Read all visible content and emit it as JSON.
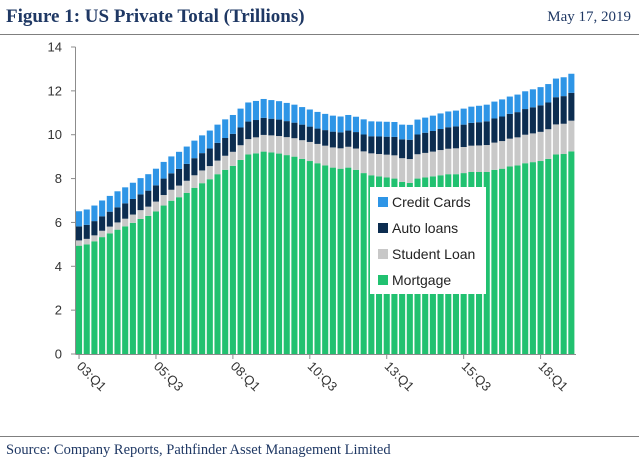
{
  "header": {
    "title": "Figure 1: US Private Total (Trillions)",
    "date": "May 17, 2019"
  },
  "footer": {
    "source": "Source: Company Reports, Pathfinder Asset Management Limited"
  },
  "chart_data": {
    "type": "bar",
    "stacked": true,
    "title": "",
    "xlabel": "",
    "ylabel": "",
    "ylim": [
      0,
      14
    ],
    "yticks": [
      0,
      2,
      4,
      6,
      8,
      10,
      12,
      14
    ],
    "grid": false,
    "legend_position": "center-right",
    "categories": [
      "03:Q1",
      "03:Q2",
      "03:Q3",
      "03:Q4",
      "04:Q1",
      "04:Q2",
      "04:Q3",
      "04:Q4",
      "05:Q1",
      "05:Q2",
      "05:Q3",
      "05:Q4",
      "06:Q1",
      "06:Q2",
      "06:Q3",
      "06:Q4",
      "07:Q1",
      "07:Q2",
      "07:Q3",
      "07:Q4",
      "08:Q1",
      "08:Q2",
      "08:Q3",
      "08:Q4",
      "09:Q1",
      "09:Q2",
      "09:Q3",
      "09:Q4",
      "10:Q1",
      "10:Q2",
      "10:Q3",
      "10:Q4",
      "11:Q1",
      "11:Q2",
      "11:Q3",
      "11:Q4",
      "12:Q1",
      "12:Q2",
      "12:Q3",
      "12:Q4",
      "13:Q1",
      "13:Q2",
      "13:Q3",
      "13:Q4",
      "14:Q1",
      "14:Q2",
      "14:Q3",
      "14:Q4",
      "15:Q1",
      "15:Q2",
      "15:Q3",
      "15:Q4",
      "16:Q1",
      "16:Q2",
      "16:Q3",
      "16:Q4",
      "17:Q1",
      "17:Q2",
      "17:Q3",
      "17:Q4",
      "18:Q1",
      "18:Q2",
      "18:Q3",
      "18:Q4",
      "19:Q1"
    ],
    "x_tick_labels": [
      "03:Q1",
      "05:Q3",
      "08:Q1",
      "10:Q3",
      "13:Q1",
      "15:Q3",
      "18:Q1"
    ],
    "series": [
      {
        "name": "Mortgage",
        "color": "#21c170",
        "values": [
          4.94,
          5.0,
          5.14,
          5.33,
          5.5,
          5.67,
          5.82,
          5.98,
          6.16,
          6.3,
          6.5,
          6.77,
          6.99,
          7.15,
          7.35,
          7.58,
          7.79,
          7.97,
          8.2,
          8.4,
          8.58,
          8.85,
          9.1,
          9.15,
          9.23,
          9.19,
          9.14,
          9.07,
          9.0,
          8.9,
          8.8,
          8.7,
          8.6,
          8.5,
          8.45,
          8.5,
          8.4,
          8.25,
          8.15,
          8.1,
          8.05,
          8.0,
          7.85,
          7.8,
          8.0,
          8.05,
          8.1,
          8.15,
          8.2,
          8.2,
          8.25,
          8.3,
          8.3,
          8.3,
          8.4,
          8.45,
          8.55,
          8.6,
          8.7,
          8.75,
          8.8,
          8.9,
          9.1,
          9.12,
          9.24
        ]
      },
      {
        "name": "Student Loan",
        "color": "#c8c8c8",
        "values": [
          0.24,
          0.25,
          0.27,
          0.29,
          0.31,
          0.33,
          0.35,
          0.38,
          0.4,
          0.42,
          0.45,
          0.48,
          0.5,
          0.53,
          0.55,
          0.57,
          0.58,
          0.6,
          0.62,
          0.64,
          0.64,
          0.67,
          0.7,
          0.73,
          0.76,
          0.78,
          0.8,
          0.82,
          0.84,
          0.85,
          0.87,
          0.88,
          0.9,
          0.92,
          0.93,
          0.95,
          0.97,
          0.99,
          1.0,
          1.02,
          1.04,
          1.06,
          1.08,
          1.09,
          1.11,
          1.12,
          1.13,
          1.15,
          1.16,
          1.18,
          1.19,
          1.2,
          1.21,
          1.23,
          1.24,
          1.26,
          1.27,
          1.28,
          1.3,
          1.31,
          1.33,
          1.35,
          1.37,
          1.38,
          1.4
        ]
      },
      {
        "name": "Auto loans",
        "color": "#0c2d50",
        "values": [
          0.64,
          0.64,
          0.65,
          0.66,
          0.68,
          0.69,
          0.7,
          0.71,
          0.72,
          0.73,
          0.74,
          0.75,
          0.75,
          0.76,
          0.77,
          0.78,
          0.79,
          0.8,
          0.81,
          0.81,
          0.82,
          0.81,
          0.8,
          0.79,
          0.78,
          0.76,
          0.75,
          0.73,
          0.71,
          0.71,
          0.7,
          0.7,
          0.71,
          0.72,
          0.73,
          0.74,
          0.75,
          0.77,
          0.78,
          0.8,
          0.82,
          0.84,
          0.86,
          0.88,
          0.9,
          0.92,
          0.94,
          0.96,
          0.98,
          1.0,
          1.02,
          1.04,
          1.06,
          1.08,
          1.1,
          1.12,
          1.13,
          1.15,
          1.17,
          1.19,
          1.21,
          1.22,
          1.24,
          1.26,
          1.27
        ]
      },
      {
        "name": "Credit Cards",
        "color": "#2e95e6",
        "values": [
          0.69,
          0.7,
          0.71,
          0.72,
          0.72,
          0.73,
          0.73,
          0.74,
          0.74,
          0.75,
          0.76,
          0.76,
          0.77,
          0.78,
          0.79,
          0.8,
          0.81,
          0.82,
          0.83,
          0.85,
          0.86,
          0.86,
          0.87,
          0.87,
          0.86,
          0.85,
          0.84,
          0.83,
          0.82,
          0.8,
          0.78,
          0.76,
          0.74,
          0.73,
          0.72,
          0.71,
          0.7,
          0.69,
          0.68,
          0.68,
          0.68,
          0.68,
          0.67,
          0.68,
          0.68,
          0.69,
          0.7,
          0.71,
          0.72,
          0.72,
          0.73,
          0.74,
          0.75,
          0.76,
          0.77,
          0.78,
          0.79,
          0.8,
          0.81,
          0.82,
          0.83,
          0.84,
          0.85,
          0.86,
          0.87
        ]
      }
    ],
    "legend_order": [
      "Credit Cards",
      "Auto loans",
      "Student Loan",
      "Mortgage"
    ]
  }
}
